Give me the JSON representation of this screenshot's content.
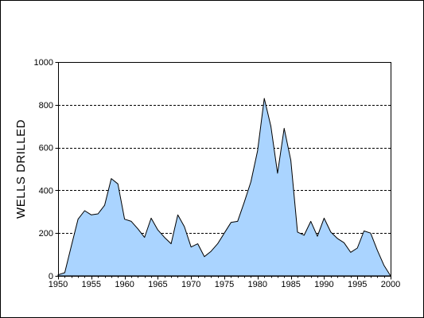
{
  "chart_data": {
    "type": "area",
    "title": "",
    "xlabel": "",
    "ylabel": "WELLS DRILLED",
    "xlim": [
      1950,
      2000
    ],
    "ylim": [
      0,
      1000
    ],
    "xticks": [
      1950,
      1955,
      1960,
      1965,
      1970,
      1975,
      1980,
      1985,
      1990,
      1995,
      2000
    ],
    "yticks": [
      0,
      200,
      400,
      600,
      800,
      1000
    ],
    "grid": "horizontal dashed",
    "colors": {
      "fill": "#aad4ff",
      "line": "#000000",
      "grid": "#000000"
    },
    "series": [
      {
        "x": [
          1950,
          1951,
          1952,
          1953,
          1954,
          1955,
          1956,
          1957,
          1958,
          1959,
          1960,
          1961,
          1962,
          1963,
          1964,
          1965,
          1966,
          1967,
          1968,
          1969,
          1970,
          1971,
          1972,
          1973,
          1974,
          1975,
          1976,
          1977,
          1978,
          1979,
          1980,
          1981,
          1982,
          1983,
          1984,
          1985,
          1986,
          1987,
          1988,
          1989,
          1990,
          1991,
          1992,
          1993,
          1994,
          1995,
          1996,
          1997,
          1998,
          1999,
          2000
        ],
        "values": [
          5,
          15,
          140,
          265,
          305,
          285,
          290,
          330,
          455,
          430,
          265,
          255,
          220,
          180,
          270,
          215,
          180,
          150,
          285,
          230,
          135,
          150,
          90,
          115,
          150,
          200,
          250,
          255,
          345,
          440,
          585,
          830,
          700,
          480,
          690,
          540,
          205,
          190,
          255,
          185,
          270,
          205,
          175,
          155,
          110,
          130,
          210,
          200,
          120,
          50,
          0
        ]
      }
    ]
  }
}
